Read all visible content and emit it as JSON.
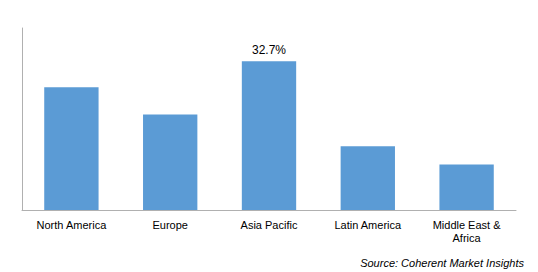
{
  "chart_data": {
    "type": "bar",
    "categories": [
      "North America",
      "Europe",
      "Asia Pacific",
      "Latin America",
      "Middle East &\nAfrica"
    ],
    "values": [
      27.0,
      21.0,
      32.7,
      14.0,
      10.0
    ],
    "color": "#5B9BD5",
    "ylim": [
      0,
      40
    ],
    "tick_labels": "x",
    "grid": false,
    "annotations": [
      {
        "text": "32.7%",
        "x": "Asia Pacific",
        "y": 32.7
      },
      {
        "text": "Source: Coherent Market Insights"
      }
    ]
  }
}
